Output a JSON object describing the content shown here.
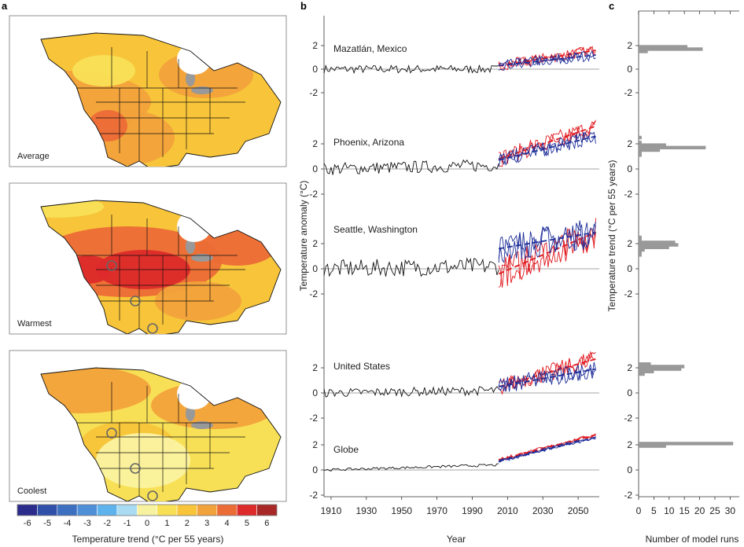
{
  "panel_letters": {
    "a": "a",
    "b": "b",
    "c": "c"
  },
  "maps": [
    {
      "label": "Average"
    },
    {
      "label": "Warmest"
    },
    {
      "label": "Coolest"
    }
  ],
  "colorbar": {
    "ticks": [
      "-6",
      "-5",
      "-4",
      "-3",
      "-2",
      "-1",
      "0",
      "1",
      "2",
      "3",
      "4",
      "5",
      "6"
    ],
    "colors": [
      "#2b2b8c",
      "#2f4fa8",
      "#3d6fc0",
      "#4f8fd8",
      "#5fb3ec",
      "#a9dcf2",
      "#f7f2a0",
      "#f8e056",
      "#f7c43a",
      "#f2a23b",
      "#ec6c36",
      "#dd2a2a",
      "#a82727"
    ],
    "title": "Temperature trend (°C per 55 years)"
  },
  "chart_data": [
    {
      "type": "line",
      "panel": "b",
      "xlabel": "Year",
      "ylabel": "Temperature anomaly (°C)",
      "x_ticks": [
        1910,
        1930,
        1950,
        1970,
        1990,
        2010,
        2030,
        2050
      ],
      "xlim": [
        1906,
        2062
      ],
      "observed_period": [
        1906,
        2005
      ],
      "projection_period": [
        2005,
        2060
      ],
      "subplots": [
        {
          "name": "Mazatlán, Mexico",
          "y_ticks": [
            "-2",
            "0",
            "2"
          ],
          "ylim": [
            -3,
            3
          ],
          "observed_trend": 0.0,
          "red_trend": [
            0.3,
            1.6
          ],
          "blue_trend": [
            0.3,
            1.2
          ],
          "red_amp": 0.45,
          "blue_amp": 0.45,
          "obs_amp": 0.35
        },
        {
          "name": "Phoenix, Arizona",
          "y_ticks": [
            "-2",
            "0",
            "2"
          ],
          "ylim": [
            -3,
            4
          ],
          "observed_trend": 0.3,
          "red_trend": [
            0.8,
            3.4
          ],
          "blue_trend": [
            0.7,
            2.6
          ],
          "red_amp": 0.7,
          "blue_amp": 0.6,
          "obs_amp": 0.5
        },
        {
          "name": "Seattle, Washington",
          "y_ticks": [
            "-2",
            "0",
            "2"
          ],
          "ylim": [
            -3,
            5
          ],
          "observed_trend": 0.2,
          "red_trend": [
            -0.4,
            2.9
          ],
          "blue_trend": [
            1.6,
            2.9
          ],
          "red_amp": 1.3,
          "blue_amp": 1.2,
          "obs_amp": 0.7
        },
        {
          "name": "United States",
          "y_ticks": [
            "-2",
            "0",
            "2"
          ],
          "ylim": [
            -3,
            4
          ],
          "observed_trend": 0.2,
          "red_trend": [
            0.5,
            2.7
          ],
          "blue_trend": [
            0.5,
            1.9
          ],
          "red_amp": 0.7,
          "blue_amp": 0.7,
          "obs_amp": 0.35
        },
        {
          "name": "Globe",
          "y_ticks": [
            "-2",
            "0",
            "2"
          ],
          "ylim": [
            -2,
            3
          ],
          "observed_trend": 0.4,
          "red_trend": [
            0.8,
            2.8
          ],
          "blue_trend": [
            0.7,
            2.6
          ],
          "red_amp": 0.15,
          "blue_amp": 0.15,
          "obs_amp": 0.1
        }
      ],
      "series": [
        {
          "name": "observed",
          "color": "#000000"
        },
        {
          "name": "warmest run",
          "color": "#e0191f"
        },
        {
          "name": "coolest run",
          "color": "#1f2f9a"
        }
      ]
    },
    {
      "type": "bar",
      "panel": "c",
      "xlabel": "Number of model runs",
      "ylabel": "Temperature trend (°C per 55 years)",
      "x_ticks": [
        "0",
        "5",
        "10",
        "15",
        "20",
        "25",
        "30"
      ],
      "xlim": [
        0,
        33
      ],
      "histograms": [
        {
          "name": "Mazatlán, Mexico",
          "bins": [
            1.4,
            1.6,
            1.8,
            2.0
          ],
          "counts": [
            3,
            21,
            16,
            0
          ]
        },
        {
          "name": "Phoenix, Arizona",
          "bins": [
            1.0,
            1.2,
            1.4,
            1.6,
            1.8,
            2.0,
            2.2,
            2.4,
            2.6
          ],
          "counts": [
            1,
            1,
            7,
            22,
            9,
            1,
            0,
            1,
            0
          ]
        },
        {
          "name": "Seattle, Washington",
          "bins": [
            1.0,
            1.2,
            1.4,
            1.6,
            1.8,
            2.0,
            2.2,
            2.4,
            2.6,
            2.8
          ],
          "counts": [
            1,
            1,
            2,
            10,
            13,
            12,
            1,
            1,
            0,
            0
          ]
        },
        {
          "name": "United States",
          "bins": [
            1.4,
            1.6,
            1.8,
            2.0,
            2.2,
            2.4,
            2.6
          ],
          "counts": [
            2,
            5,
            14,
            15,
            4,
            0,
            0
          ]
        },
        {
          "name": "Globe",
          "bins": [
            1.8,
            2.0,
            2.2
          ],
          "counts": [
            9,
            31,
            0
          ]
        }
      ]
    }
  ]
}
